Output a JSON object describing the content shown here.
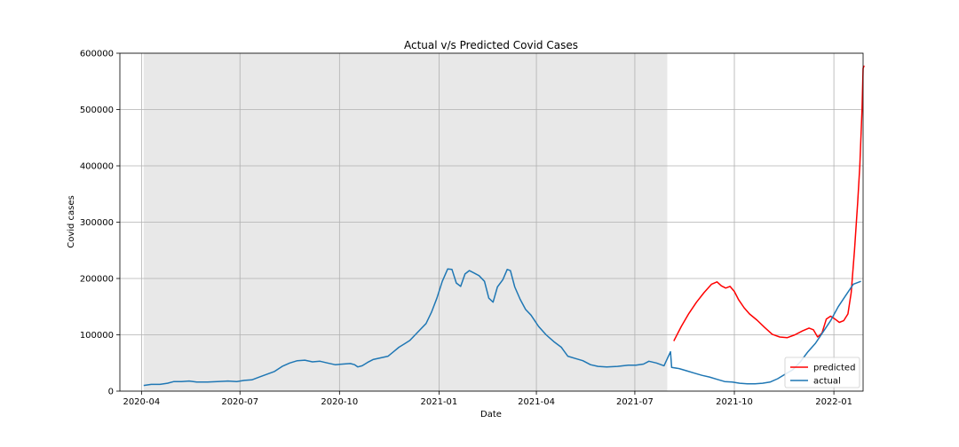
{
  "chart_data": {
    "type": "line",
    "title": "Actual v/s Predicted Covid Cases",
    "xlabel": "Date",
    "ylabel": "Covid cases",
    "xlim": [
      "2020-03-12",
      "2022-01-28"
    ],
    "ylim": [
      0,
      600000
    ],
    "x_ticks": [
      "2020-04-01",
      "2020-07-01",
      "2020-10-01",
      "2021-01-01",
      "2021-04-01",
      "2021-07-01",
      "2021-10-01",
      "2022-01-01"
    ],
    "x_tick_labels": [
      "2020-04",
      "2020-07",
      "2020-10",
      "2021-01",
      "2021-04",
      "2021-07",
      "2021-10",
      "2022-01"
    ],
    "y_ticks": [
      0,
      100000,
      200000,
      300000,
      400000,
      500000,
      600000
    ],
    "y_tick_labels": [
      "0",
      "100000",
      "200000",
      "300000",
      "400000",
      "500000",
      "600000"
    ],
    "grid": true,
    "legend_position": "bottom-right",
    "shaded_region": {
      "start": "2020-04-03",
      "end": "2021-07-31",
      "color": "#e8e8e8"
    },
    "series": [
      {
        "name": "predicted",
        "color": "#ff0000",
        "points": [
          [
            "2021-08-06",
            89000
          ],
          [
            "2021-08-13",
            115000
          ],
          [
            "2021-08-20",
            138000
          ],
          [
            "2021-08-27",
            158000
          ],
          [
            "2021-09-03",
            175000
          ],
          [
            "2021-09-10",
            190000
          ],
          [
            "2021-09-15",
            194000
          ],
          [
            "2021-09-19",
            187000
          ],
          [
            "2021-09-23",
            183000
          ],
          [
            "2021-09-27",
            186000
          ],
          [
            "2021-10-01",
            177000
          ],
          [
            "2021-10-05",
            162000
          ],
          [
            "2021-10-10",
            148000
          ],
          [
            "2021-10-15",
            137000
          ],
          [
            "2021-10-22",
            126000
          ],
          [
            "2021-10-29",
            113000
          ],
          [
            "2021-11-05",
            101000
          ],
          [
            "2021-11-12",
            96000
          ],
          [
            "2021-11-19",
            95000
          ],
          [
            "2021-11-26",
            100000
          ],
          [
            "2021-12-03",
            107000
          ],
          [
            "2021-12-09",
            112000
          ],
          [
            "2021-12-13",
            109000
          ],
          [
            "2021-12-17",
            96000
          ],
          [
            "2021-12-21",
            103000
          ],
          [
            "2021-12-25",
            128000
          ],
          [
            "2021-12-29",
            133000
          ],
          [
            "2022-01-02",
            128000
          ],
          [
            "2022-01-06",
            122000
          ],
          [
            "2022-01-10",
            125000
          ],
          [
            "2022-01-14",
            137000
          ],
          [
            "2022-01-17",
            175000
          ],
          [
            "2022-01-20",
            250000
          ],
          [
            "2022-01-23",
            335000
          ],
          [
            "2022-01-25",
            400000
          ],
          [
            "2022-01-27",
            500000
          ],
          [
            "2022-01-28",
            573000
          ],
          [
            "2022-01-29",
            578000
          ]
        ]
      },
      {
        "name": "actual",
        "color": "#1f77b4",
        "points": [
          [
            "2020-04-03",
            10000
          ],
          [
            "2020-04-10",
            12000
          ],
          [
            "2020-04-18",
            12000
          ],
          [
            "2020-04-25",
            14000
          ],
          [
            "2020-05-01",
            17000
          ],
          [
            "2020-05-08",
            17000
          ],
          [
            "2020-05-15",
            18000
          ],
          [
            "2020-05-22",
            16000
          ],
          [
            "2020-06-01",
            16000
          ],
          [
            "2020-06-10",
            17000
          ],
          [
            "2020-06-20",
            18000
          ],
          [
            "2020-06-28",
            17000
          ],
          [
            "2020-07-05",
            19000
          ],
          [
            "2020-07-12",
            20000
          ],
          [
            "2020-07-19",
            25000
          ],
          [
            "2020-07-26",
            30000
          ],
          [
            "2020-08-02",
            35000
          ],
          [
            "2020-08-09",
            44000
          ],
          [
            "2020-08-16",
            50000
          ],
          [
            "2020-08-23",
            54000
          ],
          [
            "2020-08-30",
            55000
          ],
          [
            "2020-09-06",
            52000
          ],
          [
            "2020-09-13",
            53000
          ],
          [
            "2020-09-20",
            50000
          ],
          [
            "2020-09-27",
            47000
          ],
          [
            "2020-10-04",
            48000
          ],
          [
            "2020-10-11",
            49000
          ],
          [
            "2020-10-15",
            47000
          ],
          [
            "2020-10-18",
            43000
          ],
          [
            "2020-10-22",
            45000
          ],
          [
            "2020-10-27",
            51000
          ],
          [
            "2020-11-01",
            56000
          ],
          [
            "2020-11-08",
            59000
          ],
          [
            "2020-11-15",
            62000
          ],
          [
            "2020-11-20",
            70000
          ],
          [
            "2020-11-25",
            78000
          ],
          [
            "2020-11-30",
            84000
          ],
          [
            "2020-12-05",
            90000
          ],
          [
            "2020-12-10",
            100000
          ],
          [
            "2020-12-15",
            110000
          ],
          [
            "2020-12-20",
            120000
          ],
          [
            "2020-12-25",
            140000
          ],
          [
            "2020-12-30",
            165000
          ],
          [
            "2021-01-04",
            195000
          ],
          [
            "2021-01-09",
            217000
          ],
          [
            "2021-01-13",
            216000
          ],
          [
            "2021-01-17",
            192000
          ],
          [
            "2021-01-21",
            186000
          ],
          [
            "2021-01-25",
            208000
          ],
          [
            "2021-01-29",
            214000
          ],
          [
            "2021-02-02",
            210000
          ],
          [
            "2021-02-07",
            205000
          ],
          [
            "2021-02-12",
            195000
          ],
          [
            "2021-02-16",
            165000
          ],
          [
            "2021-02-20",
            158000
          ],
          [
            "2021-02-24",
            185000
          ],
          [
            "2021-03-01",
            198000
          ],
          [
            "2021-03-05",
            216000
          ],
          [
            "2021-03-08",
            214000
          ],
          [
            "2021-03-12",
            185000
          ],
          [
            "2021-03-17",
            163000
          ],
          [
            "2021-03-22",
            145000
          ],
          [
            "2021-03-27",
            135000
          ],
          [
            "2021-04-03",
            115000
          ],
          [
            "2021-04-10",
            100000
          ],
          [
            "2021-04-17",
            88000
          ],
          [
            "2021-04-24",
            78000
          ],
          [
            "2021-04-30",
            62000
          ],
          [
            "2021-05-07",
            58000
          ],
          [
            "2021-05-14",
            54000
          ],
          [
            "2021-05-21",
            47000
          ],
          [
            "2021-05-28",
            44000
          ],
          [
            "2021-06-05",
            43000
          ],
          [
            "2021-06-15",
            44000
          ],
          [
            "2021-06-25",
            46000
          ],
          [
            "2021-07-02",
            46000
          ],
          [
            "2021-07-09",
            48000
          ],
          [
            "2021-07-14",
            53000
          ],
          [
            "2021-07-21",
            50000
          ],
          [
            "2021-07-28",
            45000
          ],
          [
            "2021-08-04",
            42000
          ],
          [
            "2021-08-11",
            40000
          ],
          [
            "2021-08-18",
            36000
          ],
          [
            "2021-08-25",
            32000
          ],
          [
            "2021-09-01",
            28000
          ],
          [
            "2021-09-08",
            25000
          ],
          [
            "2021-09-15",
            21000
          ],
          [
            "2021-09-22",
            17000
          ],
          [
            "2021-09-29",
            16000
          ],
          [
            "2021-10-06",
            14000
          ],
          [
            "2021-10-13",
            13000
          ],
          [
            "2021-10-20",
            13000
          ],
          [
            "2021-10-27",
            14000
          ],
          [
            "2021-11-03",
            16000
          ],
          [
            "2021-11-10",
            22000
          ],
          [
            "2021-11-17",
            30000
          ],
          [
            "2021-11-24",
            38000
          ],
          [
            "2021-12-01",
            52000
          ],
          [
            "2021-12-08",
            70000
          ],
          [
            "2021-12-15",
            85000
          ],
          [
            "2021-12-22",
            105000
          ],
          [
            "2021-12-29",
            125000
          ],
          [
            "2022-01-05",
            150000
          ],
          [
            "2022-01-12",
            170000
          ],
          [
            "2022-01-19",
            190000
          ],
          [
            "2022-01-26",
            195000
          ],
          [
            "2021-08-03",
            70000
          ]
        ]
      }
    ]
  }
}
